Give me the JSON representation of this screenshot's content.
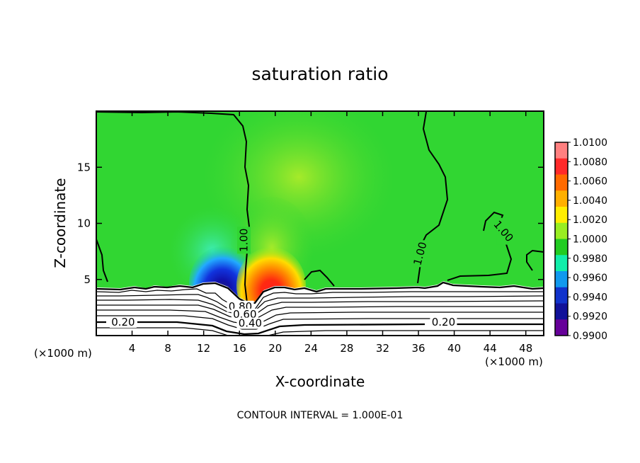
{
  "chart_data": {
    "type": "heatmap",
    "title": "saturation ratio",
    "xlabel": "X-coordinate",
    "ylabel": "Z-coordinate",
    "x_unit_label": "(×1000 m)",
    "x_unit_label_left": "(×1000 m)",
    "xlim": [
      0,
      50
    ],
    "ylim": [
      0,
      20
    ],
    "x_ticks": [
      4,
      8,
      12,
      16,
      20,
      24,
      28,
      32,
      36,
      40,
      44,
      48
    ],
    "y_ticks": [
      5,
      10,
      15
    ],
    "colorbar": {
      "labels": [
        "1.0100",
        "1.0080",
        "1.0060",
        "1.0040",
        "1.0020",
        "1.0000",
        "0.9980",
        "0.9960",
        "0.9940",
        "0.9920",
        "0.9900"
      ],
      "colors": [
        "#ff8080",
        "#ff2a2a",
        "#ff6a00",
        "#ffb000",
        "#ffee00",
        "#99ee22",
        "#22cc22",
        "#11eeaa",
        "#1199ee",
        "#1133cc",
        "#111199",
        "#660099"
      ]
    },
    "contour_labels": [
      {
        "text": "1.00",
        "x": 16.5,
        "z": 8.5,
        "rotate": -90
      },
      {
        "text": "1.00",
        "x": 36.2,
        "z": 7.3,
        "rotate": -75
      },
      {
        "text": "1.00",
        "x": 45.5,
        "z": 9.3,
        "rotate": 50
      },
      {
        "text": "0.20",
        "x": 3.0,
        "z": 1.2,
        "rotate": 0
      },
      {
        "text": "0.20",
        "x": 38.8,
        "z": 1.2,
        "rotate": 0
      },
      {
        "text": "0.80",
        "x": 16.1,
        "z": 2.6,
        "rotate": 0
      },
      {
        "text": "0.60",
        "x": 16.6,
        "z": 1.9,
        "rotate": 0
      },
      {
        "text": "0.40",
        "x": 17.2,
        "z": 1.1,
        "rotate": 0
      }
    ],
    "grid": false,
    "legend_placement": "right",
    "caption": "CONTOUR INTERVAL = 1.000E-01"
  }
}
